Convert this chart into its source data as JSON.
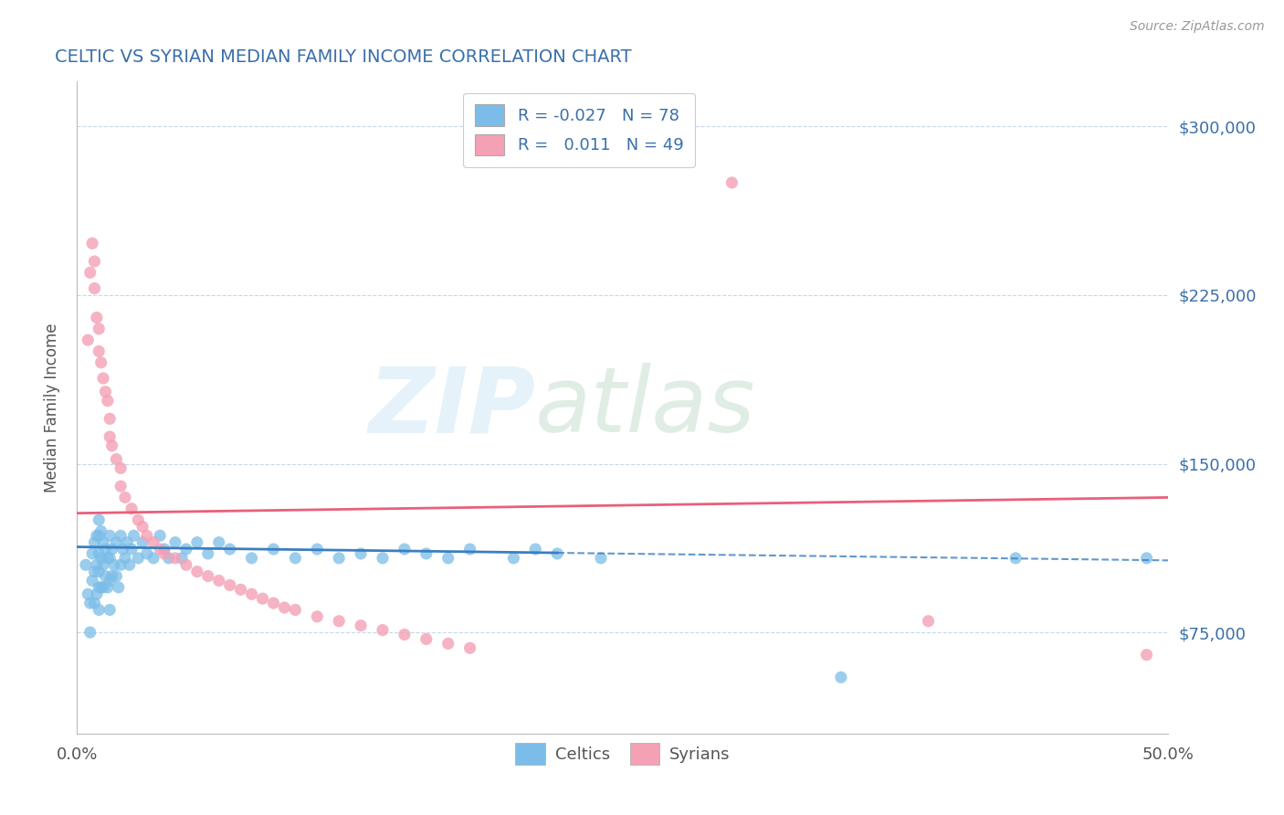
{
  "title": "CELTIC VS SYRIAN MEDIAN FAMILY INCOME CORRELATION CHART",
  "source_text": "Source: ZipAtlas.com",
  "ylabel": "Median Family Income",
  "xlim": [
    0.0,
    0.5
  ],
  "ylim": [
    30000,
    320000
  ],
  "ytick_labels": [
    "$75,000",
    "$150,000",
    "$225,000",
    "$300,000"
  ],
  "ytick_values": [
    75000,
    150000,
    225000,
    300000
  ],
  "xtick_labels": [
    "0.0%",
    "50.0%"
  ],
  "xtick_values": [
    0.0,
    0.5
  ],
  "legend_r_celtic": "-0.027",
  "legend_n_celtic": "78",
  "legend_r_syrian": "0.011",
  "legend_n_syrian": "49",
  "celtic_color": "#7bbde8",
  "syrian_color": "#f4a0b5",
  "celtic_line_color": "#3a7fc1",
  "syrian_line_color": "#e8607a",
  "title_color": "#3a6faa",
  "background_color": "#ffffff",
  "plot_bg_color": "#ffffff",
  "grid_color": "#c5d8ec",
  "celtic_x": [
    0.004,
    0.005,
    0.006,
    0.006,
    0.007,
    0.007,
    0.008,
    0.008,
    0.008,
    0.009,
    0.009,
    0.009,
    0.01,
    0.01,
    0.01,
    0.01,
    0.01,
    0.01,
    0.011,
    0.011,
    0.011,
    0.012,
    0.012,
    0.012,
    0.013,
    0.013,
    0.014,
    0.014,
    0.015,
    0.015,
    0.015,
    0.015,
    0.016,
    0.016,
    0.017,
    0.018,
    0.018,
    0.019,
    0.02,
    0.02,
    0.021,
    0.022,
    0.023,
    0.024,
    0.025,
    0.026,
    0.028,
    0.03,
    0.032,
    0.035,
    0.038,
    0.04,
    0.042,
    0.045,
    0.048,
    0.05,
    0.055,
    0.06,
    0.065,
    0.07,
    0.08,
    0.09,
    0.1,
    0.11,
    0.12,
    0.13,
    0.14,
    0.15,
    0.16,
    0.17,
    0.18,
    0.2,
    0.21,
    0.22,
    0.24,
    0.35,
    0.43,
    0.49
  ],
  "celtic_y": [
    105000,
    92000,
    88000,
    75000,
    110000,
    98000,
    115000,
    102000,
    88000,
    118000,
    105000,
    92000,
    125000,
    118000,
    110000,
    102000,
    95000,
    85000,
    120000,
    108000,
    95000,
    115000,
    105000,
    95000,
    112000,
    100000,
    108000,
    95000,
    118000,
    108000,
    98000,
    85000,
    112000,
    100000,
    105000,
    115000,
    100000,
    95000,
    118000,
    105000,
    112000,
    108000,
    115000,
    105000,
    112000,
    118000,
    108000,
    115000,
    110000,
    108000,
    118000,
    112000,
    108000,
    115000,
    108000,
    112000,
    115000,
    110000,
    115000,
    112000,
    108000,
    112000,
    108000,
    112000,
    108000,
    110000,
    108000,
    112000,
    110000,
    108000,
    112000,
    108000,
    112000,
    110000,
    108000,
    55000,
    108000,
    108000
  ],
  "syrian_x": [
    0.005,
    0.006,
    0.007,
    0.008,
    0.008,
    0.009,
    0.01,
    0.01,
    0.011,
    0.012,
    0.013,
    0.014,
    0.015,
    0.015,
    0.016,
    0.018,
    0.02,
    0.02,
    0.022,
    0.025,
    0.028,
    0.03,
    0.032,
    0.035,
    0.038,
    0.04,
    0.045,
    0.05,
    0.055,
    0.06,
    0.065,
    0.07,
    0.075,
    0.08,
    0.085,
    0.09,
    0.095,
    0.1,
    0.11,
    0.12,
    0.13,
    0.14,
    0.15,
    0.16,
    0.17,
    0.18,
    0.3,
    0.39,
    0.49
  ],
  "syrian_y": [
    205000,
    235000,
    248000,
    240000,
    228000,
    215000,
    210000,
    200000,
    195000,
    188000,
    182000,
    178000,
    170000,
    162000,
    158000,
    152000,
    148000,
    140000,
    135000,
    130000,
    125000,
    122000,
    118000,
    115000,
    112000,
    110000,
    108000,
    105000,
    102000,
    100000,
    98000,
    96000,
    94000,
    92000,
    90000,
    88000,
    86000,
    85000,
    82000,
    80000,
    78000,
    76000,
    74000,
    72000,
    70000,
    68000,
    275000,
    80000,
    65000
  ],
  "celtic_trend_x": [
    0.0,
    0.5
  ],
  "celtic_trend_y": [
    113000,
    107000
  ],
  "celtic_trend_solid_end": 0.22,
  "syrian_trend_x": [
    0.0,
    0.5
  ],
  "syrian_trend_y": [
    128000,
    135000
  ]
}
